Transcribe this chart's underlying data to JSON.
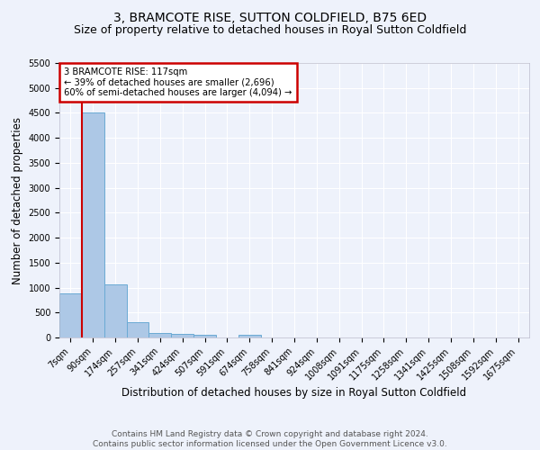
{
  "title": "3, BRAMCOTE RISE, SUTTON COLDFIELD, B75 6ED",
  "subtitle": "Size of property relative to detached houses in Royal Sutton Coldfield",
  "xlabel": "Distribution of detached houses by size in Royal Sutton Coldfield",
  "ylabel": "Number of detached properties",
  "footnote1": "Contains HM Land Registry data © Crown copyright and database right 2024.",
  "footnote2": "Contains public sector information licensed under the Open Government Licence v3.0.",
  "annotation_line1": "3 BRAMCOTE RISE: 117sqm",
  "annotation_line2": "← 39% of detached houses are smaller (2,696)",
  "annotation_line3": "60% of semi-detached houses are larger (4,094) →",
  "bar_labels": [
    "7sqm",
    "90sqm",
    "174sqm",
    "257sqm",
    "341sqm",
    "424sqm",
    "507sqm",
    "591sqm",
    "674sqm",
    "758sqm",
    "841sqm",
    "924sqm",
    "1008sqm",
    "1091sqm",
    "1175sqm",
    "1258sqm",
    "1341sqm",
    "1425sqm",
    "1508sqm",
    "1592sqm",
    "1675sqm"
  ],
  "bar_values": [
    890,
    4500,
    1060,
    300,
    90,
    70,
    60,
    0,
    55,
    0,
    0,
    0,
    0,
    0,
    0,
    0,
    0,
    0,
    0,
    0,
    0
  ],
  "ylim": [
    0,
    5500
  ],
  "yticks": [
    0,
    500,
    1000,
    1500,
    2000,
    2500,
    3000,
    3500,
    4000,
    4500,
    5000,
    5500
  ],
  "bar_color": "#adc8e6",
  "bar_edge_color": "#6aaad4",
  "vline_color": "#cc0000",
  "annotation_box_color": "#cc0000",
  "background_color": "#eef2fb",
  "grid_color": "#ffffff",
  "title_fontsize": 10,
  "subtitle_fontsize": 9,
  "axis_label_fontsize": 8.5,
  "tick_fontsize": 7,
  "footnote_fontsize": 6.5
}
